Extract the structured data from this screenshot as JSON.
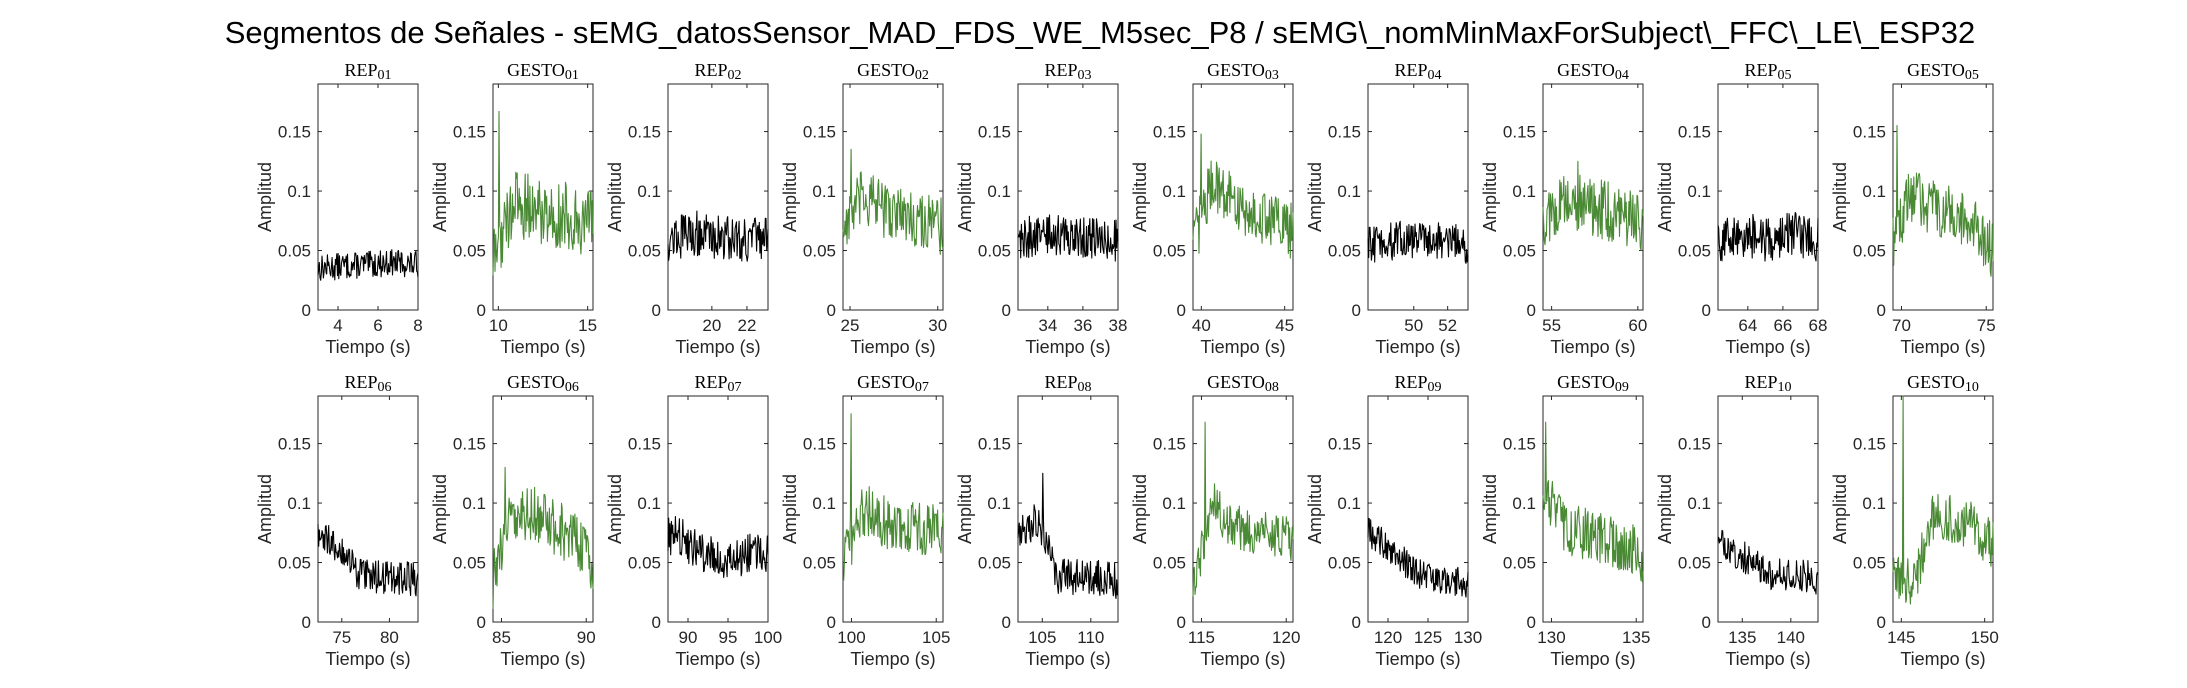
{
  "figure": {
    "title": "Segmentos de Señales - sEMG_datosSensor_MAD_FDS_WE_M5sec_P8 / sEMG\\_nomMinMaxForSubject\\_FFC\\_LE\\_ESP32",
    "colors": {
      "rep": "#000000",
      "gesto": "#4a8a35",
      "axis": "#262626"
    }
  },
  "chart_data": [
    {
      "type": "line",
      "title": "REP_01",
      "kind": "rep",
      "x_range": [
        3,
        8
      ],
      "xticks": [
        4,
        6,
        8
      ],
      "ylim": [
        0,
        0.19
      ],
      "yticks": [
        0,
        0.05,
        0.1,
        0.15
      ],
      "ytick_labels": [
        "0",
        "0.05",
        "0.1",
        "0.15"
      ],
      "xlabel": "Tiempo (s)",
      "ylabel": "Amplitud",
      "signal": {
        "baseline": [
          0.035,
          0.037,
          0.038,
          0.04,
          0.038
        ],
        "noise": 0.007,
        "spike": null
      }
    },
    {
      "type": "line",
      "title": "GESTO_01",
      "kind": "gesto",
      "x_range": [
        9.7,
        15.3
      ],
      "xticks": [
        10,
        15
      ],
      "ylim": [
        0,
        0.19
      ],
      "yticks": [
        0,
        0.05,
        0.1,
        0.15
      ],
      "ytick_labels": [
        "0",
        "0.05",
        "0.1",
        "0.15"
      ],
      "xlabel": "Tiempo (s)",
      "ylabel": "Amplitud",
      "signal": {
        "baseline": [
          0.04,
          0.09,
          0.085,
          0.08,
          0.078,
          0.07
        ],
        "noise": 0.018,
        "spike": [
          0.06,
          0.167
        ]
      }
    },
    {
      "type": "line",
      "title": "REP_02",
      "kind": "rep",
      "x_range": [
        17.5,
        23.2
      ],
      "xticks": [
        20,
        22
      ],
      "ylim": [
        0,
        0.19
      ],
      "yticks": [
        0,
        0.05,
        0.1,
        0.15
      ],
      "ytick_labels": [
        "0",
        "0.05",
        "0.1",
        "0.15"
      ],
      "xlabel": "Tiempo (s)",
      "ylabel": "Amplitud",
      "signal": {
        "baseline": [
          0.06,
          0.065,
          0.062,
          0.06,
          0.058
        ],
        "noise": 0.012,
        "spike": null
      }
    },
    {
      "type": "line",
      "title": "GESTO_02",
      "kind": "gesto",
      "x_range": [
        24.6,
        30.3
      ],
      "xticks": [
        25,
        30
      ],
      "ylim": [
        0,
        0.19
      ],
      "yticks": [
        0,
        0.05,
        0.1,
        0.15
      ],
      "ytick_labels": [
        "0",
        "0.05",
        "0.1",
        "0.15"
      ],
      "xlabel": "Tiempo (s)",
      "ylabel": "Amplitud",
      "signal": {
        "baseline": [
          0.07,
          0.095,
          0.085,
          0.08,
          0.075,
          0.07
        ],
        "noise": 0.015,
        "spike": [
          0.08,
          0.135
        ]
      }
    },
    {
      "type": "line",
      "title": "REP_03",
      "kind": "rep",
      "x_range": [
        32.3,
        38
      ],
      "xticks": [
        34,
        36,
        38
      ],
      "ylim": [
        0,
        0.19
      ],
      "yticks": [
        0,
        0.05,
        0.1,
        0.15
      ],
      "ytick_labels": [
        "0",
        "0.05",
        "0.1",
        "0.15"
      ],
      "xlabel": "Tiempo (s)",
      "ylabel": "Amplitud",
      "signal": {
        "baseline": [
          0.06,
          0.063,
          0.062,
          0.06,
          0.058
        ],
        "noise": 0.011,
        "spike": null
      }
    },
    {
      "type": "line",
      "title": "GESTO_03",
      "kind": "gesto",
      "x_range": [
        39.5,
        45.5
      ],
      "xticks": [
        40,
        45
      ],
      "ylim": [
        0,
        0.19
      ],
      "yticks": [
        0,
        0.05,
        0.1,
        0.15
      ],
      "ytick_labels": [
        "0",
        "0.05",
        "0.1",
        "0.15"
      ],
      "xlabel": "Tiempo (s)",
      "ylabel": "Amplitud",
      "signal": {
        "baseline": [
          0.055,
          0.11,
          0.09,
          0.08,
          0.075,
          0.065
        ],
        "noise": 0.015,
        "spike": [
          0.08,
          0.148
        ]
      }
    },
    {
      "type": "line",
      "title": "REP_04",
      "kind": "rep",
      "x_range": [
        47.3,
        53.2
      ],
      "xticks": [
        50,
        52
      ],
      "ylim": [
        0,
        0.19
      ],
      "yticks": [
        0,
        0.05,
        0.1,
        0.15
      ],
      "ytick_labels": [
        "0",
        "0.05",
        "0.1",
        "0.15"
      ],
      "xlabel": "Tiempo (s)",
      "ylabel": "Amplitud",
      "signal": {
        "baseline": [
          0.055,
          0.058,
          0.06,
          0.058,
          0.055
        ],
        "noise": 0.01,
        "spike": null
      }
    },
    {
      "type": "line",
      "title": "GESTO_04",
      "kind": "gesto",
      "x_range": [
        54.5,
        60.3
      ],
      "xticks": [
        55,
        60
      ],
      "ylim": [
        0,
        0.19
      ],
      "yticks": [
        0,
        0.05,
        0.1,
        0.15
      ],
      "ytick_labels": [
        "0",
        "0.05",
        "0.1",
        "0.15"
      ],
      "xlabel": "Tiempo (s)",
      "ylabel": "Amplitud",
      "signal": {
        "baseline": [
          0.075,
          0.09,
          0.088,
          0.085,
          0.08,
          0.075
        ],
        "noise": 0.016,
        "spike": [
          0.35,
          0.125
        ]
      }
    },
    {
      "type": "line",
      "title": "REP_05",
      "kind": "rep",
      "x_range": [
        62.3,
        68
      ],
      "xticks": [
        64,
        66,
        68
      ],
      "ylim": [
        0,
        0.19
      ],
      "yticks": [
        0,
        0.05,
        0.1,
        0.15
      ],
      "ytick_labels": [
        "0",
        "0.05",
        "0.1",
        "0.15"
      ],
      "xlabel": "Tiempo (s)",
      "ylabel": "Amplitud",
      "signal": {
        "baseline": [
          0.06,
          0.062,
          0.06,
          0.063,
          0.06
        ],
        "noise": 0.012,
        "spike": null
      }
    },
    {
      "type": "line",
      "title": "GESTO_05",
      "kind": "gesto",
      "x_range": [
        69.5,
        75.4
      ],
      "xticks": [
        70,
        75
      ],
      "ylim": [
        0,
        0.19
      ],
      "yticks": [
        0,
        0.05,
        0.1,
        0.15
      ],
      "ytick_labels": [
        "0",
        "0.05",
        "0.1",
        "0.15"
      ],
      "xlabel": "Tiempo (s)",
      "ylabel": "Amplitud",
      "signal": {
        "baseline": [
          0.06,
          0.1,
          0.085,
          0.08,
          0.07,
          0.05
        ],
        "noise": 0.015,
        "spike": [
          0.04,
          0.155
        ]
      }
    },
    {
      "type": "line",
      "title": "REP_06",
      "kind": "rep",
      "x_range": [
        72.5,
        83
      ],
      "xticks": [
        75,
        80
      ],
      "ylim": [
        0,
        0.19
      ],
      "yticks": [
        0,
        0.05,
        0.1,
        0.15
      ],
      "ytick_labels": [
        "0",
        "0.05",
        "0.1",
        "0.15"
      ],
      "xlabel": "Tiempo (s)",
      "ylabel": "Amplitud",
      "signal": {
        "baseline": [
          0.07,
          0.065,
          0.04,
          0.038,
          0.037,
          0.036
        ],
        "noise": 0.009,
        "spike": null
      }
    },
    {
      "type": "line",
      "title": "GESTO_06",
      "kind": "gesto",
      "x_range": [
        84.5,
        90.4
      ],
      "xticks": [
        85,
        90
      ],
      "ylim": [
        0,
        0.19
      ],
      "yticks": [
        0,
        0.05,
        0.1,
        0.15
      ],
      "ytick_labels": [
        "0",
        "0.05",
        "0.1",
        "0.15"
      ],
      "xlabel": "Tiempo (s)",
      "ylabel": "Amplitud",
      "signal": {
        "baseline": [
          0.035,
          0.095,
          0.09,
          0.08,
          0.07,
          0.05
        ],
        "noise": 0.015,
        "spike": [
          0.12,
          0.13
        ]
      }
    },
    {
      "type": "line",
      "title": "REP_07",
      "kind": "rep",
      "x_range": [
        87.5,
        100
      ],
      "xticks": [
        90,
        95,
        100
      ],
      "ylim": [
        0,
        0.19
      ],
      "yticks": [
        0,
        0.05,
        0.1,
        0.15
      ],
      "ytick_labels": [
        "0",
        "0.05",
        "0.1",
        "0.15"
      ],
      "xlabel": "Tiempo (s)",
      "ylabel": "Amplitud",
      "signal": {
        "baseline": [
          0.075,
          0.065,
          0.05,
          0.055,
          0.06
        ],
        "noise": 0.011,
        "spike": null
      }
    },
    {
      "type": "line",
      "title": "GESTO_07",
      "kind": "gesto",
      "x_range": [
        99.5,
        105.4
      ],
      "xticks": [
        100,
        105
      ],
      "ylim": [
        0,
        0.19
      ],
      "yticks": [
        0,
        0.05,
        0.1,
        0.15
      ],
      "ytick_labels": [
        "0",
        "0.05",
        "0.1",
        "0.15"
      ],
      "xlabel": "Tiempo (s)",
      "ylabel": "Amplitud",
      "signal": {
        "baseline": [
          0.05,
          0.095,
          0.085,
          0.08,
          0.078,
          0.08
        ],
        "noise": 0.014,
        "spike": [
          0.08,
          0.175
        ]
      }
    },
    {
      "type": "line",
      "title": "REP_08",
      "kind": "rep",
      "x_range": [
        102.5,
        112.8
      ],
      "xticks": [
        105,
        110
      ],
      "ylim": [
        0,
        0.19
      ],
      "yticks": [
        0,
        0.05,
        0.1,
        0.15
      ],
      "ytick_labels": [
        "0",
        "0.05",
        "0.1",
        "0.15"
      ],
      "xlabel": "Tiempo (s)",
      "ylabel": "Amplitud",
      "signal": {
        "baseline": [
          0.08,
          0.085,
          0.04,
          0.038,
          0.037,
          0.035
        ],
        "noise": 0.01,
        "spike": [
          0.25,
          0.125
        ]
      }
    },
    {
      "type": "line",
      "title": "GESTO_08",
      "kind": "gesto",
      "x_range": [
        114.5,
        120.4
      ],
      "xticks": [
        115,
        120
      ],
      "ylim": [
        0,
        0.19
      ],
      "yticks": [
        0,
        0.05,
        0.1,
        0.15
      ],
      "ytick_labels": [
        "0",
        "0.05",
        "0.1",
        "0.15"
      ],
      "xlabel": "Tiempo (s)",
      "ylabel": "Amplitud",
      "signal": {
        "baseline": [
          0.03,
          0.1,
          0.08,
          0.075,
          0.072,
          0.07
        ],
        "noise": 0.012,
        "spike": [
          0.12,
          0.168
        ]
      }
    },
    {
      "type": "line",
      "title": "REP_09",
      "kind": "rep",
      "x_range": [
        117.5,
        130
      ],
      "xticks": [
        120,
        125,
        130
      ],
      "ylim": [
        0,
        0.19
      ],
      "yticks": [
        0,
        0.05,
        0.1,
        0.15
      ],
      "ytick_labels": [
        "0",
        "0.05",
        "0.1",
        "0.15"
      ],
      "xlabel": "Tiempo (s)",
      "ylabel": "Amplitud",
      "signal": {
        "baseline": [
          0.075,
          0.06,
          0.04,
          0.035,
          0.033
        ],
        "noise": 0.008,
        "spike": null
      }
    },
    {
      "type": "line",
      "title": "GESTO_09",
      "kind": "gesto",
      "x_range": [
        129.5,
        135.4
      ],
      "xticks": [
        130,
        135
      ],
      "ylim": [
        0,
        0.19
      ],
      "yticks": [
        0,
        0.05,
        0.1,
        0.15
      ],
      "ytick_labels": [
        "0",
        "0.05",
        "0.1",
        "0.15"
      ],
      "xlabel": "Tiempo (s)",
      "ylabel": "Amplitud",
      "signal": {
        "baseline": [
          0.11,
          0.08,
          0.075,
          0.07,
          0.065,
          0.055
        ],
        "noise": 0.014,
        "spike": [
          0.03,
          0.168
        ]
      }
    },
    {
      "type": "line",
      "title": "REP_10",
      "kind": "rep",
      "x_range": [
        132.5,
        142.8
      ],
      "xticks": [
        135,
        140
      ],
      "ylim": [
        0,
        0.19
      ],
      "yticks": [
        0,
        0.05,
        0.1,
        0.15
      ],
      "ytick_labels": [
        "0",
        "0.05",
        "0.1",
        "0.15"
      ],
      "xlabel": "Tiempo (s)",
      "ylabel": "Amplitud",
      "signal": {
        "baseline": [
          0.07,
          0.055,
          0.04,
          0.038,
          0.037
        ],
        "noise": 0.009,
        "spike": null
      }
    },
    {
      "type": "line",
      "title": "GESTO_10",
      "kind": "gesto",
      "x_range": [
        144.5,
        150.5
      ],
      "xticks": [
        145,
        150
      ],
      "ylim": [
        0,
        0.19
      ],
      "yticks": [
        0,
        0.05,
        0.1,
        0.15
      ],
      "ytick_labels": [
        "0",
        "0.05",
        "0.1",
        "0.15"
      ],
      "xlabel": "Tiempo (s)",
      "ylabel": "Amplitud",
      "signal": {
        "baseline": [
          0.04,
          0.03,
          0.09,
          0.085,
          0.08,
          0.065
        ],
        "noise": 0.013,
        "spike": [
          0.1,
          0.19
        ]
      }
    }
  ]
}
